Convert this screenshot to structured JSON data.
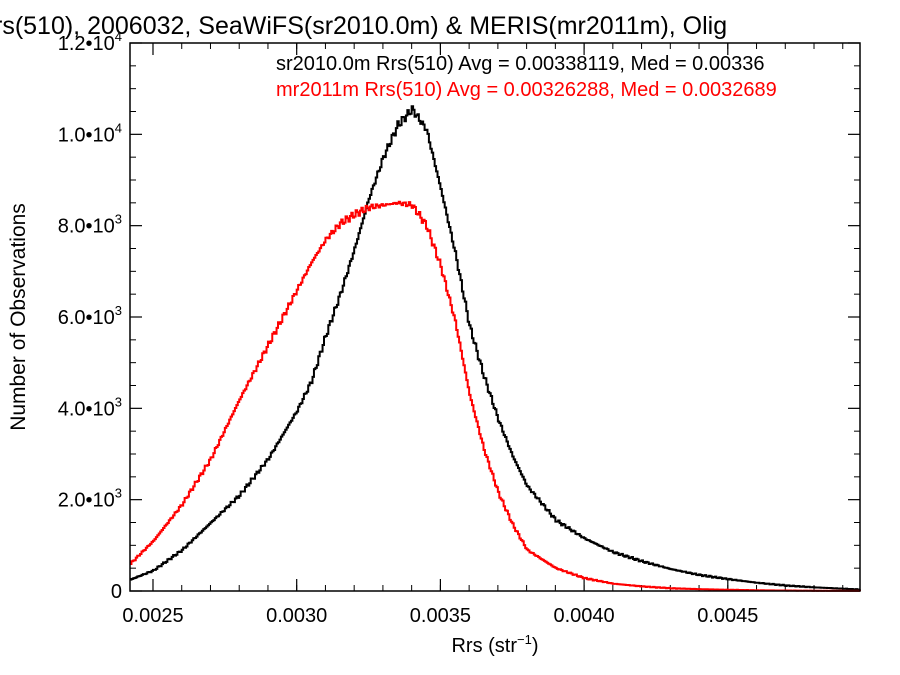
{
  "chart_data": {
    "type": "line",
    "title": "rs(510), 2006032, SeaWiFS(sr2010.0m) & MERIS(mr2011m), Olig",
    "xlabel_base": "Rrs (str",
    "xlabel_sup": "−1",
    "xlabel_end": ")",
    "ylabel": "Number of Observations",
    "xlim": [
      0.00242,
      0.00496
    ],
    "ylim": [
      0,
      12000
    ],
    "x_ticks": [
      {
        "value": 0.0025,
        "label": "0.0025"
      },
      {
        "value": 0.003,
        "label": "0.0030"
      },
      {
        "value": 0.0035,
        "label": "0.0035"
      },
      {
        "value": 0.004,
        "label": "0.0040"
      },
      {
        "value": 0.0045,
        "label": "0.0045"
      }
    ],
    "y_ticks": [
      {
        "value": 0,
        "label": "0",
        "exp": ""
      },
      {
        "value": 2000,
        "label": "2.0•10",
        "exp": "3"
      },
      {
        "value": 4000,
        "label": "4.0•10",
        "exp": "3"
      },
      {
        "value": 6000,
        "label": "6.0•10",
        "exp": "3"
      },
      {
        "value": 8000,
        "label": "8.0•10",
        "exp": "3"
      },
      {
        "value": 10000,
        "label": "1.0•10",
        "exp": "4"
      },
      {
        "value": 12000,
        "label": "1.2•10",
        "exp": "4"
      }
    ],
    "series": [
      {
        "legend": "sr2010.0m Rrs(510) Avg = 0.00338119, Med = 0.00336",
        "color": "#000000",
        "x": [
          0.00242,
          0.0025,
          0.0026,
          0.0027,
          0.0028,
          0.0029,
          0.003,
          0.00305,
          0.0031,
          0.00315,
          0.0032,
          0.00325,
          0.0033,
          0.00335,
          0.0034,
          0.00345,
          0.0035,
          0.00355,
          0.0036,
          0.00365,
          0.0037,
          0.00375,
          0.0038,
          0.0039,
          0.004,
          0.0041,
          0.0042,
          0.0043,
          0.0044,
          0.0045,
          0.0046,
          0.0047,
          0.0048,
          0.0049,
          0.00496
        ],
        "y": [
          250,
          450,
          900,
          1500,
          2100,
          2900,
          3950,
          4600,
          5600,
          6500,
          7500,
          8600,
          9500,
          10200,
          10550,
          10100,
          8800,
          7400,
          5800,
          4700,
          3750,
          2950,
          2300,
          1550,
          1150,
          850,
          650,
          480,
          350,
          260,
          180,
          120,
          80,
          50,
          30
        ]
      },
      {
        "legend": "mr2011m Rrs(510) Avg = 0.00326288, Med = 0.0032689",
        "color": "#ff0000",
        "x": [
          0.00242,
          0.0025,
          0.0026,
          0.0027,
          0.0028,
          0.0029,
          0.003,
          0.00305,
          0.0031,
          0.00315,
          0.0032,
          0.00325,
          0.0033,
          0.00335,
          0.0034,
          0.00345,
          0.0035,
          0.00355,
          0.0036,
          0.00365,
          0.0037,
          0.00375,
          0.0038,
          0.0039,
          0.004,
          0.0041,
          0.0042,
          0.0043,
          0.0044,
          0.0045,
          0.0046,
          0.0047,
          0.0048,
          0.0049,
          0.00496
        ],
        "y": [
          600,
          1100,
          1900,
          2900,
          4200,
          5400,
          6600,
          7200,
          7700,
          8050,
          8250,
          8400,
          8450,
          8500,
          8450,
          8000,
          7100,
          5900,
          4300,
          3100,
          2150,
          1450,
          900,
          500,
          280,
          160,
          100,
          60,
          40,
          25,
          15,
          10,
          5,
          3,
          2
        ]
      }
    ]
  }
}
